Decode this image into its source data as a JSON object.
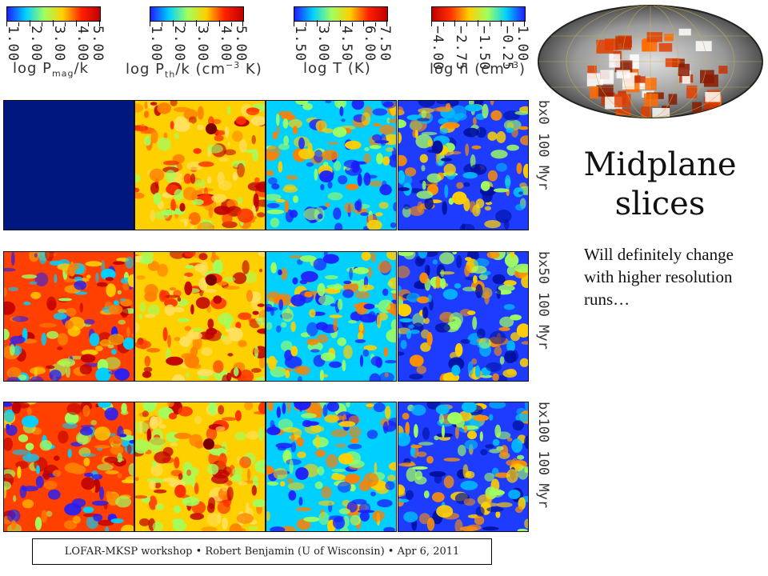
{
  "colorbars": [
    {
      "ticks": [
        "1.00",
        "2.00",
        "3.00",
        "4.00",
        "5.00"
      ],
      "label": "log P",
      "sub": "mag",
      "suffix": "/k",
      "stops": [
        "#1e1eff",
        "#00d0ff",
        "#a0ff60",
        "#ffd000",
        "#ff2000",
        "#c00000"
      ]
    },
    {
      "ticks": [
        "1.00",
        "2.00",
        "3.00",
        "4.00",
        "5.00"
      ],
      "label": "log P",
      "sub": "th",
      "suffix": "/k (cm",
      "sup": "−3",
      "tail": " K)",
      "stops": [
        "#1e1eff",
        "#00d0ff",
        "#a0ff60",
        "#ffd000",
        "#ff2000",
        "#c00000"
      ]
    },
    {
      "ticks": [
        "1.50",
        "3.00",
        "4.50",
        "6.00",
        "7.50"
      ],
      "label": "log T (K)",
      "stops": [
        "#1e1eff",
        "#00d0ff",
        "#a0ff60",
        "#ffd000",
        "#ff2000",
        "#c00000"
      ]
    },
    {
      "ticks": [
        "−4.00",
        "−2.75",
        "−1.50",
        "−0.25",
        "1.00"
      ],
      "label": "log n (cm",
      "sup": "−3",
      "tail": ")",
      "stops": [
        "#c00000",
        "#ff3000",
        "#ffd000",
        "#a0ff60",
        "#00d0ff",
        "#1e1eff"
      ]
    }
  ],
  "rows": [
    {
      "label": "bx0  100 Myr"
    },
    {
      "label": "bx50  100 Myr"
    },
    {
      "label": "bx100  100 Myr"
    }
  ],
  "title": "Midplane slices",
  "note": "Will definitely change with higher resolution runs…",
  "footer": "LOFAR-MKSP workshop • Robert Benjamin (U of Wisconsin) • Apr 6, 2011",
  "panel_styles": {
    "uniform_color": "#001780",
    "field_colors": [
      "#1e1eff",
      "#00d0ff",
      "#a0ff60",
      "#ffd000",
      "#ff2000",
      "#c00000"
    ]
  }
}
